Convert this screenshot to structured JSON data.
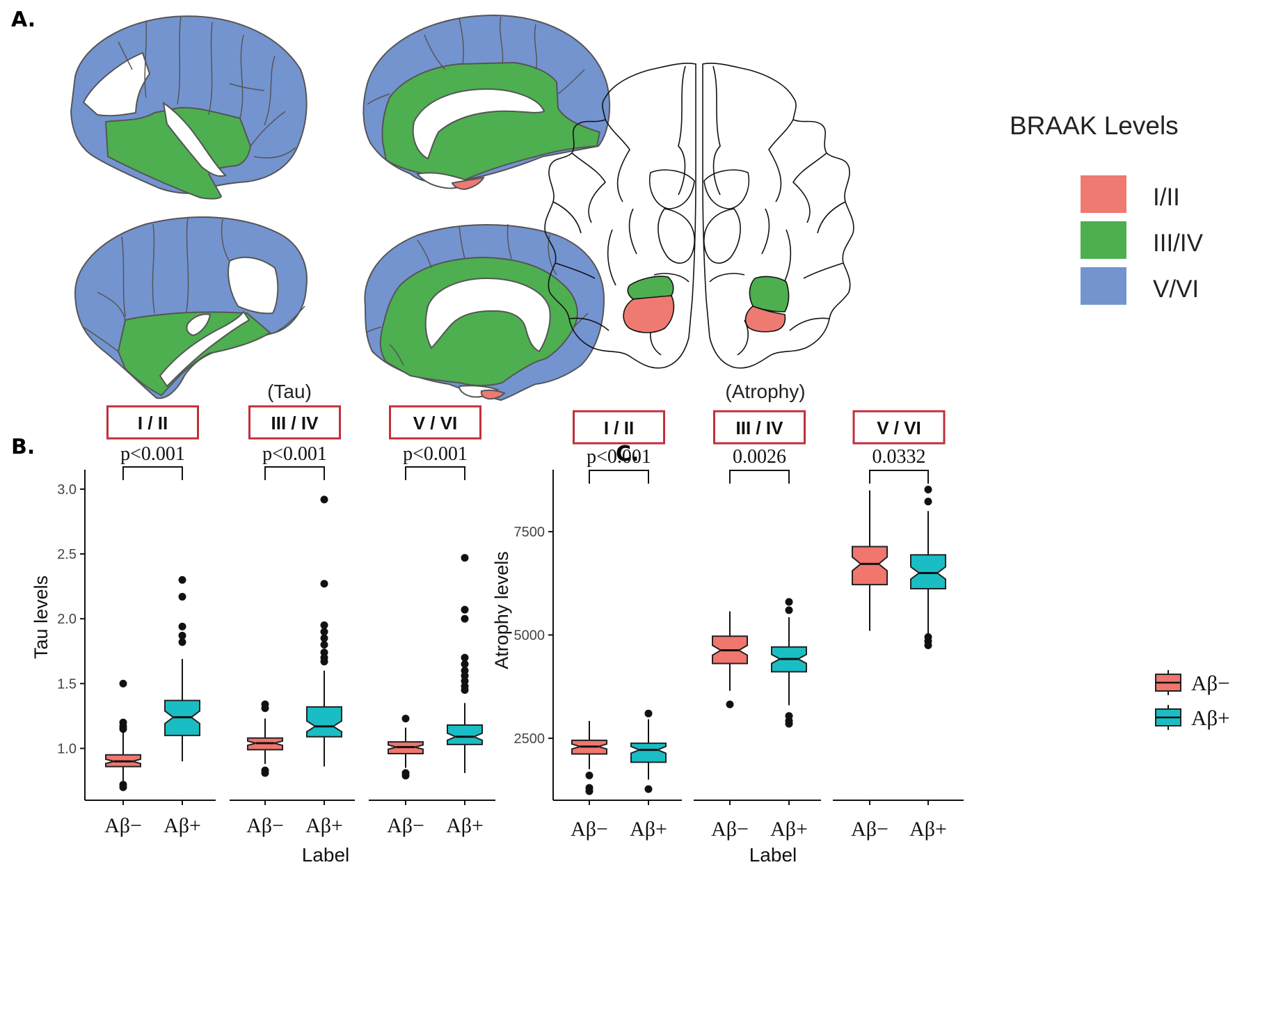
{
  "panels": {
    "a": {
      "letter": "A.",
      "legend": {
        "title": "BRAAK Levels",
        "entries": [
          {
            "label": "I/II",
            "color": "#EE7A72"
          },
          {
            "label": "III/IV",
            "color": "#4DAF50"
          },
          {
            "label": "V/VI",
            "color": "#7494D0"
          }
        ]
      }
    },
    "b": {
      "letter": "B."
    },
    "c": {
      "letter": "C."
    }
  },
  "colors": {
    "ab_neg": "#F0766E",
    "ab_pos": "#1BBDC4",
    "frame": "#C0303C"
  },
  "chart_data": [
    {
      "type": "box",
      "title": "(Tau)",
      "xlabel": "Label",
      "ylabel": "Tau levels",
      "ylim": [
        0.6,
        3.15
      ],
      "yticks": [
        1.0,
        1.5,
        2.0,
        2.5,
        3.0
      ],
      "ytick_labels": [
        "1.0",
        "1.5",
        "2.0",
        "2.5",
        "3.0"
      ],
      "facets": [
        {
          "label": "I / II",
          "pvalue": "p<0.001",
          "groups": [
            {
              "label": "Aβ−",
              "q1": 0.86,
              "median": 0.9,
              "q3": 0.95,
              "whisker_low": 0.75,
              "whisker_high": 1.13,
              "outliers": [
                1.5,
                1.2,
                1.17,
                1.15,
                0.72,
                0.7
              ]
            },
            {
              "label": "Aβ+",
              "q1": 1.1,
              "median": 1.24,
              "q3": 1.37,
              "whisker_low": 0.9,
              "whisker_high": 1.69,
              "outliers": [
                2.3,
                2.17,
                1.94,
                1.87,
                1.82
              ]
            }
          ]
        },
        {
          "label": "III / IV",
          "pvalue": "p<0.001",
          "groups": [
            {
              "label": "Aβ−",
              "q1": 0.99,
              "median": 1.04,
              "q3": 1.08,
              "whisker_low": 0.88,
              "whisker_high": 1.23,
              "outliers": [
                1.34,
                1.31,
                0.83,
                0.81
              ]
            },
            {
              "label": "Aβ+",
              "q1": 1.09,
              "median": 1.17,
              "q3": 1.32,
              "whisker_low": 0.86,
              "whisker_high": 1.6,
              "outliers": [
                2.92,
                2.27,
                1.95,
                1.9,
                1.85,
                1.8,
                1.74,
                1.7,
                1.67
              ]
            }
          ]
        },
        {
          "label": "V / VI",
          "pvalue": "p<0.001",
          "groups": [
            {
              "label": "Aβ−",
              "q1": 0.96,
              "median": 1.01,
              "q3": 1.05,
              "whisker_low": 0.85,
              "whisker_high": 1.16,
              "outliers": [
                1.23,
                0.81,
                0.79
              ]
            },
            {
              "label": "Aβ+",
              "q1": 1.03,
              "median": 1.09,
              "q3": 1.18,
              "whisker_low": 0.81,
              "whisker_high": 1.35,
              "outliers": [
                2.47,
                2.07,
                2.0,
                1.7,
                1.65,
                1.6,
                1.56,
                1.52,
                1.48,
                1.45
              ]
            }
          ]
        }
      ]
    },
    {
      "type": "box",
      "title": "(Atrophy)",
      "xlabel": "Label",
      "ylabel": "Atrophy levels",
      "ylim": [
        1000,
        9000
      ],
      "yticks": [
        2500,
        5000,
        7500
      ],
      "ytick_labels": [
        "2500",
        "5000",
        "7500"
      ],
      "facets": [
        {
          "label": "I / II",
          "pvalue": "p<0.001",
          "groups": [
            {
              "label": "Aβ−",
              "q1": 2120,
              "median": 2300,
              "q3": 2450,
              "whisker_low": 1750,
              "whisker_high": 2920,
              "outliers": [
                1600,
                1300,
                1220
              ]
            },
            {
              "label": "Aβ+",
              "q1": 1920,
              "median": 2220,
              "q3": 2380,
              "whisker_low": 1500,
              "whisker_high": 2960,
              "outliers": [
                3100,
                1270
              ]
            }
          ]
        },
        {
          "label": "III / IV",
          "pvalue": "0.0026",
          "groups": [
            {
              "label": "Aβ−",
              "q1": 4310,
              "median": 4630,
              "q3": 4970,
              "whisker_low": 3650,
              "whisker_high": 5570,
              "outliers": [
                3320
              ]
            },
            {
              "label": "Aβ+",
              "q1": 4110,
              "median": 4420,
              "q3": 4710,
              "whisker_low": 3300,
              "whisker_high": 5430,
              "outliers": [
                5800,
                5600,
                3040,
                2920,
                2850
              ]
            }
          ]
        },
        {
          "label": "V / VI",
          "pvalue": "0.0332",
          "groups": [
            {
              "label": "Aβ−",
              "q1": 6220,
              "median": 6720,
              "q3": 7140,
              "whisker_low": 5100,
              "whisker_high": 8500,
              "outliers": []
            },
            {
              "label": "Aβ+",
              "q1": 6120,
              "median": 6500,
              "q3": 6940,
              "whisker_low": 5000,
              "whisker_high": 8000,
              "outliers": [
                8520,
                8230,
                4950,
                4850,
                4750
              ]
            }
          ]
        }
      ],
      "legend": {
        "entries": [
          {
            "label": "Aβ−"
          },
          {
            "label": "Aβ+"
          }
        ]
      }
    }
  ]
}
